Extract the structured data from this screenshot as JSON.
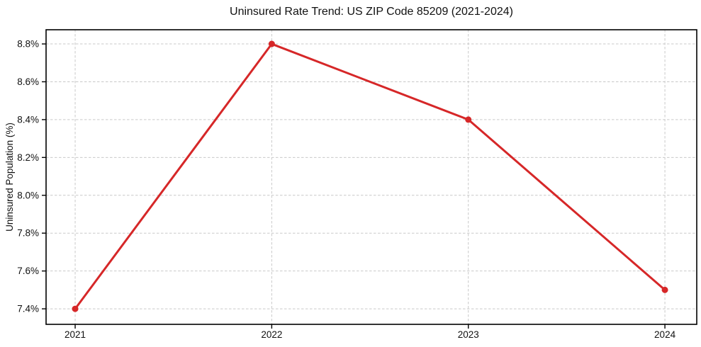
{
  "chart_data": {
    "type": "line",
    "title": "Uninsured Rate Trend: US ZIP Code 85209 (2021-2024)",
    "xlabel": "",
    "ylabel": "Uninsured Population (%)",
    "x": [
      2021,
      2022,
      2023,
      2024
    ],
    "xtick_labels": [
      "2021",
      "2022",
      "2023",
      "2024"
    ],
    "values": [
      7.4,
      8.8,
      8.4,
      7.5
    ],
    "yticks": [
      7.4,
      7.6,
      7.8,
      8.0,
      8.2,
      8.4,
      8.6,
      8.8
    ],
    "ytick_labels": [
      "7.4%",
      "7.6%",
      "7.8%",
      "8.0%",
      "8.2%",
      "8.4%",
      "8.6%",
      "8.8%"
    ],
    "xlim": [
      2020.852,
      2024.162
    ],
    "ylim": [
      7.318,
      8.875
    ],
    "grid": true,
    "legend_position": "none",
    "colors": {
      "line": "#d62728",
      "marker": "#d62728",
      "grid": "#c9c9c9",
      "axis": "#000000",
      "text": "#111111",
      "background": "#ffffff"
    }
  }
}
